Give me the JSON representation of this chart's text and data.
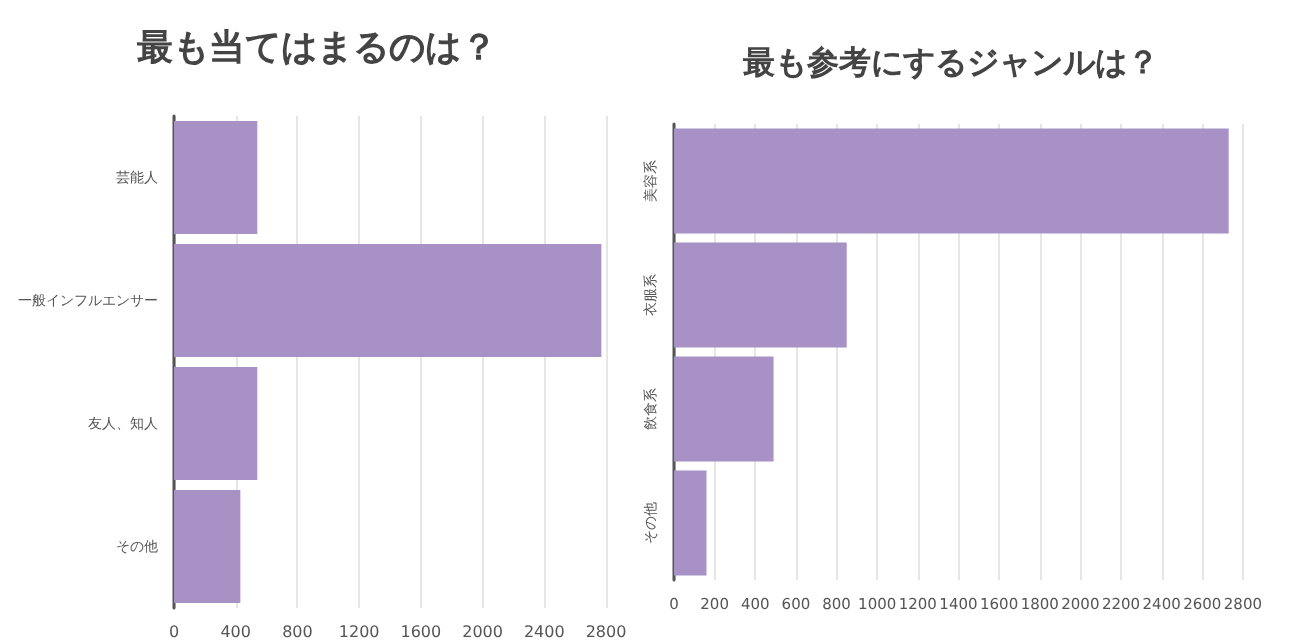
{
  "chart_data": [
    {
      "type": "bar",
      "orientation": "horizontal",
      "title": "最も当てはまるのは？",
      "categories": [
        "芸能人",
        "一般インフルエンサー",
        "友人、知人",
        "その他"
      ],
      "values": [
        540,
        2770,
        540,
        430
      ],
      "color": "#a891c4",
      "xlim": [
        0,
        2800
      ],
      "xticks": [
        0,
        400,
        800,
        1200,
        1600,
        2000,
        2400,
        2800
      ],
      "grid": "x"
    },
    {
      "type": "bar",
      "orientation": "horizontal",
      "title": "最も参考にするジャンルは？",
      "categories": [
        "美容系",
        "衣服系",
        "飲食系",
        "その他"
      ],
      "values": [
        2730,
        850,
        490,
        160
      ],
      "color": "#a891c4",
      "xlim": [
        0,
        2800
      ],
      "xticks": [
        0,
        200,
        400,
        600,
        800,
        1000,
        1200,
        1400,
        1600,
        1800,
        2000,
        2200,
        2400,
        2600,
        2800
      ],
      "grid": "x"
    }
  ]
}
